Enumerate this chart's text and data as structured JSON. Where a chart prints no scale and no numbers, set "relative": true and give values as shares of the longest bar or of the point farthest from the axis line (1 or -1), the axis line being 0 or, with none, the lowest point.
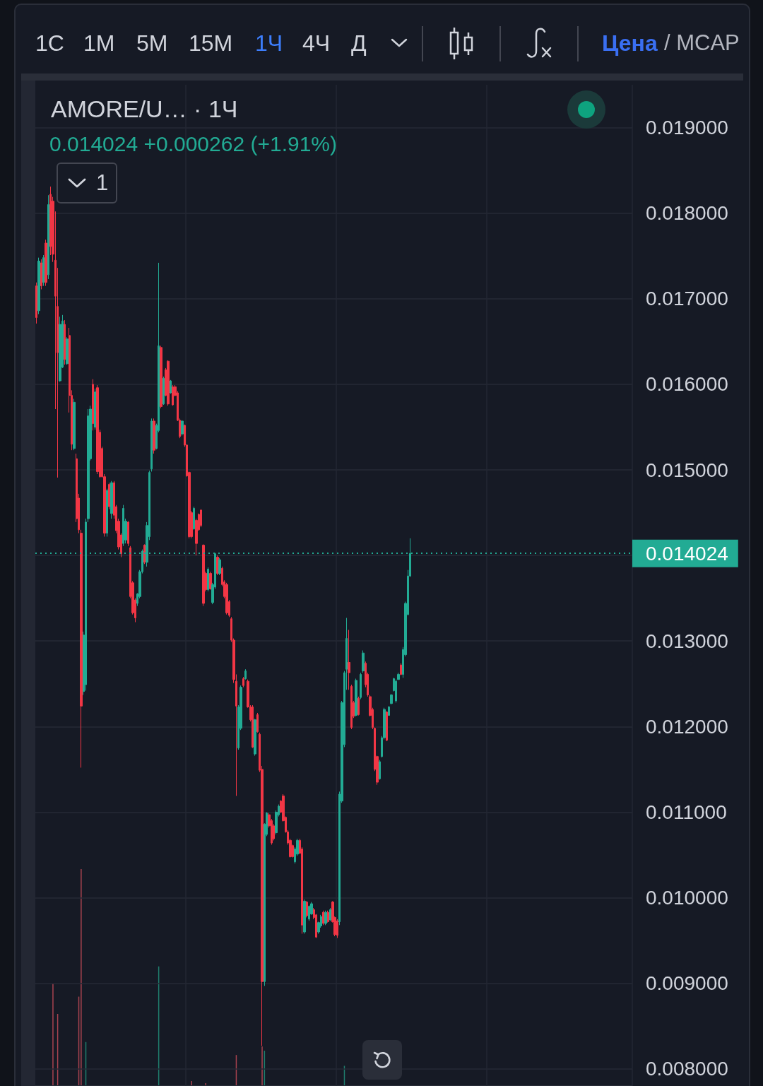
{
  "chart_data": [
    {
      "type": "candlestick",
      "title": "AMORE/U… · 1Ч",
      "subtitle": "0.014024 +0.000262 (+1.91%)",
      "annotations": [
        "1С",
        "1М",
        "5М",
        "15М",
        "1Ч",
        "4Ч",
        "Д",
        "Цена",
        "/ MCAP",
        "1"
      ],
      "categories": [
        null,
        null,
        null,
        null,
        null,
        null,
        null,
        null,
        null,
        null,
        null,
        null,
        null,
        null,
        null,
        null,
        null,
        null,
        null,
        null,
        null,
        null,
        null,
        null,
        null,
        null,
        null,
        null,
        null,
        null,
        null,
        null,
        null,
        null,
        null,
        null,
        null,
        null,
        null,
        null,
        null,
        null,
        null,
        null,
        null,
        null,
        null,
        null,
        null,
        null,
        null,
        null,
        null,
        null,
        null,
        null,
        null,
        null,
        null,
        null,
        null,
        null,
        null,
        null,
        null,
        null,
        null,
        null,
        null,
        null,
        null,
        null,
        null,
        null,
        null,
        null,
        null,
        null,
        null,
        null,
        null,
        null,
        null,
        null,
        null,
        null,
        null,
        null,
        null,
        null,
        null,
        null,
        null,
        null,
        null,
        null,
        null,
        null,
        null,
        null,
        null,
        null,
        null,
        null,
        null,
        null,
        null,
        null,
        null,
        null,
        null,
        null,
        null,
        null,
        null,
        null,
        null,
        null,
        null,
        null,
        null,
        null,
        null,
        null,
        null,
        null,
        null,
        null,
        null,
        null,
        null,
        null,
        null,
        null,
        null,
        null,
        null,
        null,
        null,
        null,
        null,
        null,
        null,
        null,
        null,
        null,
        null,
        null,
        null,
        null,
        null,
        null,
        null,
        null,
        null,
        null,
        null,
        null,
        null,
        null,
        null,
        null,
        null,
        null,
        null,
        null,
        null,
        null,
        null,
        null,
        null,
        null,
        null,
        null,
        null,
        null,
        null,
        null,
        null,
        null,
        null,
        null,
        null,
        null,
        null,
        null,
        null,
        null,
        null,
        null,
        null,
        null,
        null,
        null,
        null,
        null,
        null,
        null,
        null,
        null,
        null,
        null,
        null,
        null,
        null,
        null,
        null,
        null,
        null,
        null,
        null,
        null,
        null,
        null,
        null,
        null,
        null,
        null,
        null,
        null,
        null,
        null,
        null,
        null,
        null,
        null,
        null,
        null,
        null,
        null,
        null,
        null,
        null,
        null,
        null,
        null,
        null,
        null,
        null,
        null,
        null,
        null,
        null,
        null,
        null,
        null,
        null,
        null,
        null,
        null,
        null,
        null,
        null,
        null
      ],
      "ohlc": [
        [
          0.01715,
          0.01719,
          0.01671,
          0.01678
        ],
        [
          0.01686,
          0.01748,
          0.01682,
          0.01744
        ],
        [
          0.01742,
          0.01746,
          0.01711,
          0.01715
        ],
        [
          0.01719,
          0.01751,
          0.01715,
          0.01748
        ],
        [
          0.01765,
          0.01769,
          0.01715,
          0.01719
        ],
        [
          0.01728,
          0.01821,
          0.01723,
          0.0181
        ],
        [
          0.01822,
          0.01831,
          0.01751,
          0.01761
        ],
        [
          0.01814,
          0.01819,
          0.01743,
          0.01752
        ],
        [
          0.01745,
          0.01802,
          0.01571,
          0.01703
        ],
        [
          0.01691,
          0.01736,
          0.01491,
          0.01637
        ],
        [
          0.01604,
          0.01679,
          0.01603,
          0.0167
        ],
        [
          0.0162,
          0.01681,
          0.01619,
          0.01674
        ],
        [
          0.0167,
          0.01675,
          0.01623,
          0.01629
        ],
        [
          0.01624,
          0.01655,
          0.01623,
          0.01653
        ],
        [
          0.01657,
          0.01666,
          0.01567,
          0.01587
        ],
        [
          0.01587,
          0.01593,
          0.01523,
          0.0153
        ],
        [
          0.01525,
          0.01583,
          0.01523,
          0.01579
        ],
        [
          0.01513,
          0.01519,
          0.01439,
          0.01443
        ],
        [
          0.01467,
          0.01472,
          0.01426,
          0.0143
        ],
        [
          0.01426,
          0.0143,
          0.01152,
          0.01224
        ],
        [
          0.01241,
          0.01311,
          0.01237,
          0.01307
        ],
        [
          0.01249,
          0.01443,
          0.01242,
          0.01439
        ],
        [
          0.01443,
          0.01571,
          0.01439,
          0.01563
        ],
        [
          0.01513,
          0.01575,
          0.01511,
          0.01571
        ],
        [
          0.016,
          0.01606,
          0.01546,
          0.01554
        ],
        [
          0.0155,
          0.01595,
          0.01547,
          0.01591
        ],
        [
          0.01596,
          0.01599,
          0.01495,
          0.01498
        ],
        [
          0.01544,
          0.01547,
          0.01491,
          0.01492
        ],
        [
          0.01525,
          0.01527,
          0.01491,
          0.01492
        ],
        [
          0.01492,
          0.01495,
          0.01422,
          0.01426
        ],
        [
          0.01426,
          0.01478,
          0.01422,
          0.01476
        ],
        [
          0.01483,
          0.01485,
          0.01454,
          0.01457
        ],
        [
          0.01449,
          0.01487,
          0.01443,
          0.01485
        ],
        [
          0.01485,
          0.01487,
          0.01443,
          0.01447
        ],
        [
          0.01457,
          0.01459,
          0.01426,
          0.01429
        ],
        [
          0.0144,
          0.01443,
          0.01407,
          0.0141
        ],
        [
          0.01424,
          0.01426,
          0.01398,
          0.01402
        ],
        [
          0.01414,
          0.01459,
          0.01411,
          0.01455
        ],
        [
          0.01418,
          0.01443,
          0.01414,
          0.0144
        ],
        [
          0.01439,
          0.0144,
          0.01411,
          0.01414
        ],
        [
          0.01409,
          0.01411,
          0.0135,
          0.01352
        ],
        [
          0.01368,
          0.0137,
          0.01331,
          0.01333
        ],
        [
          0.01348,
          0.0135,
          0.01322,
          0.01327
        ],
        [
          0.01344,
          0.01356,
          0.01341,
          0.01355
        ],
        [
          0.01352,
          0.01383,
          0.0135,
          0.01381
        ],
        [
          0.01381,
          0.01407,
          0.01379,
          0.01405
        ],
        [
          0.01412,
          0.01413,
          0.0139,
          0.01392
        ],
        [
          0.01392,
          0.01439,
          0.01387,
          0.01435
        ],
        [
          0.01422,
          0.01499,
          0.01418,
          0.01497
        ],
        [
          0.01501,
          0.0156,
          0.01498,
          0.01557
        ],
        [
          0.01557,
          0.0156,
          0.01519,
          0.01523
        ],
        [
          0.01525,
          0.01554,
          0.01524,
          0.01552
        ],
        [
          0.01546,
          0.01742,
          0.01544,
          0.01645
        ],
        [
          0.01643,
          0.01645,
          0.01572,
          0.01574
        ],
        [
          0.01577,
          0.01609,
          0.01576,
          0.01607
        ],
        [
          0.01617,
          0.01619,
          0.01586,
          0.01587
        ],
        [
          0.01627,
          0.01628,
          0.01575,
          0.01577
        ],
        [
          0.0159,
          0.01605,
          0.01589,
          0.01604
        ],
        [
          0.01597,
          0.01599,
          0.01575,
          0.01576
        ],
        [
          0.01597,
          0.01599,
          0.01586,
          0.01587
        ],
        [
          0.0159,
          0.01592,
          0.01557,
          0.01558
        ],
        [
          0.01558,
          0.0156,
          0.01537,
          0.01539
        ],
        [
          0.01542,
          0.01558,
          0.0154,
          0.01557
        ],
        [
          0.01552,
          0.01553,
          0.01527,
          0.01529
        ],
        [
          0.01529,
          0.0153,
          0.01492,
          0.01493
        ],
        [
          0.01497,
          0.01498,
          0.0142,
          0.01422
        ],
        [
          0.0145,
          0.01452,
          0.0142,
          0.01422
        ],
        [
          0.01431,
          0.01457,
          0.0143,
          0.01455
        ],
        [
          0.01441,
          0.01443,
          0.014,
          0.01414
        ],
        [
          0.01448,
          0.01449,
          0.01429,
          0.0143
        ],
        [
          0.01453,
          0.01454,
          0.01433,
          0.01435
        ],
        [
          0.01412,
          0.01413,
          0.01341,
          0.01344
        ],
        [
          0.01379,
          0.01381,
          0.01358,
          0.0136
        ],
        [
          0.0136,
          0.01386,
          0.01358,
          0.01384
        ],
        [
          0.01379,
          0.01381,
          0.0136,
          0.01361
        ],
        [
          0.01345,
          0.01368,
          0.01343,
          0.01366
        ],
        [
          0.01363,
          0.01403,
          0.01361,
          0.01402
        ],
        [
          0.01398,
          0.014,
          0.01377,
          0.01379
        ],
        [
          0.01379,
          0.01397,
          0.01377,
          0.01395
        ],
        [
          0.01385,
          0.01387,
          0.01364,
          0.01366
        ],
        [
          0.01369,
          0.01371,
          0.0135,
          0.01352
        ],
        [
          0.01366,
          0.01368,
          0.01331,
          0.01333
        ],
        [
          0.01346,
          0.01348,
          0.01328,
          0.0133
        ],
        [
          0.01326,
          0.01328,
          0.01299,
          0.01301
        ],
        [
          0.01301,
          0.01303,
          0.01251,
          0.01255
        ],
        [
          0.01253,
          0.01261,
          0.01119,
          0.01224
        ],
        [
          0.01175,
          0.01225,
          0.01173,
          0.01223
        ],
        [
          0.01198,
          0.01248,
          0.01196,
          0.01246
        ],
        [
          0.01256,
          0.01258,
          0.01246,
          0.01248
        ],
        [
          0.01256,
          0.01267,
          0.01255,
          0.01265
        ],
        [
          0.01253,
          0.01255,
          0.01222,
          0.01223
        ],
        [
          0.01223,
          0.01225,
          0.01206,
          0.01208
        ],
        [
          0.01223,
          0.01225,
          0.01175,
          0.01176
        ],
        [
          0.01168,
          0.01209,
          0.01166,
          0.01208
        ],
        [
          0.01214,
          0.01216,
          0.01193,
          0.01194
        ],
        [
          0.01191,
          0.01193,
          0.01147,
          0.01149
        ],
        [
          0.0115,
          0.01154,
          0.00827,
          0.00902
        ],
        [
          0.00902,
          0.01087,
          0.00897,
          0.01086
        ],
        [
          0.01074,
          0.011,
          0.01072,
          0.01099
        ],
        [
          0.01097,
          0.01099,
          0.01082,
          0.01084
        ],
        [
          0.0109,
          0.01092,
          0.01062,
          0.01064
        ],
        [
          0.01084,
          0.01086,
          0.01067,
          0.01069
        ],
        [
          0.01076,
          0.01102,
          0.01074,
          0.011
        ],
        [
          0.01097,
          0.01109,
          0.01095,
          0.01107
        ],
        [
          0.01113,
          0.01114,
          0.01099,
          0.011
        ],
        [
          0.01119,
          0.01121,
          0.01089,
          0.0109
        ],
        [
          0.01094,
          0.01095,
          0.01076,
          0.01077
        ],
        [
          0.01077,
          0.01079,
          0.01062,
          0.01064
        ],
        [
          0.01067,
          0.01069,
          0.01047,
          0.01048
        ],
        [
          0.01061,
          0.01062,
          0.01047,
          0.01048
        ],
        [
          0.01042,
          0.01059,
          0.0104,
          0.01057
        ],
        [
          0.01051,
          0.01069,
          0.01049,
          0.01067
        ],
        [
          0.01067,
          0.01069,
          0.01051,
          0.01052
        ],
        [
          0.01057,
          0.01059,
          0.00958,
          0.00968
        ],
        [
          0.0096,
          0.00998,
          0.00958,
          0.00996
        ],
        [
          0.00995,
          0.00996,
          0.00977,
          0.00979
        ],
        [
          0.00975,
          0.00991,
          0.00973,
          0.0099
        ],
        [
          0.00981,
          0.00995,
          0.0098,
          0.00993
        ],
        [
          0.00986,
          0.00988,
          0.00975,
          0.00977
        ],
        [
          0.0098,
          0.00981,
          0.00953,
          0.00954
        ],
        [
          0.0096,
          0.00972,
          0.00958,
          0.00971
        ],
        [
          0.00967,
          0.0098,
          0.00965,
          0.00978
        ],
        [
          0.00983,
          0.00985,
          0.00968,
          0.0097
        ],
        [
          0.0097,
          0.00985,
          0.00968,
          0.00983
        ],
        [
          0.00983,
          0.00985,
          0.00971,
          0.00972
        ],
        [
          0.00974,
          0.00988,
          0.00973,
          0.00986
        ],
        [
          0.00995,
          0.00996,
          0.00971,
          0.00972
        ],
        [
          0.00977,
          0.00978,
          0.00955,
          0.00957
        ],
        [
          0.00973,
          0.00975,
          0.00953,
          0.00956
        ],
        [
          0.00972,
          0.01124,
          0.00968,
          0.01121
        ],
        [
          0.01113,
          0.0123,
          0.01111,
          0.01228
        ],
        [
          0.01179,
          0.01265,
          0.01176,
          0.01263
        ],
        [
          0.01267,
          0.01327,
          0.01243,
          0.01303
        ],
        [
          0.01275,
          0.01313,
          0.01243,
          0.01263
        ],
        [
          0.01247,
          0.01249,
          0.01197,
          0.01199
        ],
        [
          0.01228,
          0.0123,
          0.0121,
          0.01212
        ],
        [
          0.01213,
          0.01256,
          0.01212,
          0.01254
        ],
        [
          0.01233,
          0.01235,
          0.01213,
          0.01214
        ],
        [
          0.01234,
          0.01263,
          0.01232,
          0.01261
        ],
        [
          0.01265,
          0.01289,
          0.01263,
          0.01286
        ],
        [
          0.01274,
          0.01276,
          0.01246,
          0.01249
        ],
        [
          0.01261,
          0.01263,
          0.01235,
          0.01237
        ],
        [
          0.01235,
          0.01237,
          0.01212,
          0.01213
        ],
        [
          0.0122,
          0.01222,
          0.01197,
          0.01199
        ],
        [
          0.01198,
          0.01199,
          0.01148,
          0.0115
        ],
        [
          0.01165,
          0.01166,
          0.01132,
          0.01135
        ],
        [
          0.01139,
          0.01161,
          0.01138,
          0.01159
        ],
        [
          0.01165,
          0.01189,
          0.01164,
          0.01187
        ],
        [
          0.01187,
          0.01222,
          0.01185,
          0.0122
        ],
        [
          0.01217,
          0.01218,
          0.01183,
          0.01184
        ],
        [
          0.01213,
          0.01224,
          0.01213,
          0.01223
        ],
        [
          0.01227,
          0.01238,
          0.01226,
          0.01237
        ],
        [
          0.01242,
          0.01257,
          0.01241,
          0.01256
        ],
        [
          0.0123,
          0.01255,
          0.01228,
          0.01253
        ],
        [
          0.01255,
          0.01263,
          0.01255,
          0.01261
        ],
        [
          0.01272,
          0.01274,
          0.0126,
          0.01261
        ],
        [
          0.01261,
          0.01293,
          0.01257,
          0.0129
        ],
        [
          0.01284,
          0.01346,
          0.01282,
          0.01344
        ],
        [
          0.01331,
          0.01383,
          0.0133,
          0.01376
        ],
        [
          0.01376,
          0.0142,
          0.01375,
          0.014024
        ],
        null,
        null,
        null,
        null,
        null,
        null,
        null,
        null,
        null,
        null,
        null,
        null,
        null,
        null,
        null,
        null,
        null,
        null,
        null,
        null,
        null,
        null,
        null,
        null,
        null,
        null,
        null,
        null,
        null,
        null,
        null,
        null,
        null,
        null,
        null,
        null,
        null,
        null,
        null,
        null,
        null,
        null,
        null,
        null,
        null,
        null,
        null,
        null,
        null,
        null,
        null,
        null,
        null,
        null,
        null,
        null,
        null,
        null,
        null,
        null,
        null,
        null,
        null,
        null,
        null,
        null,
        null,
        null,
        null,
        null,
        null,
        null,
        null,
        null,
        null,
        null,
        null,
        null,
        null,
        null,
        null,
        null,
        null,
        null,
        null,
        null,
        null,
        null,
        null,
        null,
        null,
        null,
        null,
        null
      ],
      "colors": [
        "#f23645",
        "#22ab94",
        "#f23645",
        "#22ab94",
        "#f23645",
        "#22ab94",
        "#f23645",
        "#f23645",
        "#f23645",
        "#f23645",
        "#22ab94",
        "#22ab94",
        "#f23645",
        "#22ab94",
        "#f23645",
        "#f23645",
        "#22ab94",
        "#f23645",
        "#f23645",
        "#f23645",
        "#22ab94",
        "#22ab94",
        "#22ab94",
        "#22ab94",
        "#f23645",
        "#22ab94",
        "#f23645",
        "#f23645",
        "#f23645",
        "#f23645",
        "#22ab94",
        "#f23645",
        "#22ab94",
        "#f23645",
        "#f23645",
        "#f23645",
        "#f23645",
        "#22ab94",
        "#22ab94",
        "#f23645",
        "#f23645",
        "#f23645",
        "#f23645",
        "#22ab94",
        "#22ab94",
        "#22ab94",
        "#f23645",
        "#22ab94",
        "#22ab94",
        "#22ab94",
        "#f23645",
        "#22ab94",
        "#22ab94",
        "#f23645",
        "#22ab94",
        "#f23645",
        "#f23645",
        "#22ab94",
        "#f23645",
        "#f23645",
        "#f23645",
        "#f23645",
        "#22ab94",
        "#f23645",
        "#f23645",
        "#f23645",
        "#f23645",
        "#22ab94",
        "#f23645",
        "#f23645",
        "#f23645",
        "#f23645",
        "#f23645",
        "#22ab94",
        "#f23645",
        "#22ab94",
        "#22ab94",
        "#f23645",
        "#22ab94",
        "#f23645",
        "#f23645",
        "#f23645",
        "#f23645",
        "#f23645",
        "#f23645",
        "#f23645",
        "#22ab94",
        "#22ab94",
        "#f23645",
        "#22ab94",
        "#f23645",
        "#f23645",
        "#f23645",
        "#22ab94",
        "#f23645",
        "#f23645",
        "#f23645",
        "#22ab94",
        "#22ab94",
        "#f23645",
        "#f23645",
        "#f23645",
        "#22ab94",
        "#22ab94",
        "#f23645",
        "#f23645",
        "#f23645",
        "#f23645",
        "#f23645",
        "#f23645",
        "#22ab94",
        "#22ab94",
        "#f23645",
        "#f23645",
        "#22ab94",
        "#f23645",
        "#22ab94",
        "#22ab94",
        "#f23645",
        "#f23645",
        "#22ab94",
        "#22ab94",
        "#f23645",
        "#22ab94",
        "#f23645",
        "#22ab94",
        "#f23645",
        "#f23645",
        "#f23645",
        "#22ab94",
        "#22ab94",
        "#22ab94",
        "#22ab94",
        "#f23645",
        "#f23645",
        "#f23645",
        "#22ab94",
        "#f23645",
        "#22ab94",
        "#22ab94",
        "#f23645",
        "#f23645",
        "#f23645",
        "#f23645",
        "#f23645",
        "#f23645",
        "#22ab94",
        "#22ab94",
        "#22ab94",
        "#f23645",
        "#22ab94",
        "#22ab94",
        "#22ab94",
        "#22ab94",
        "#22ab94",
        "#f23645",
        "#22ab94",
        "#22ab94",
        "#22ab94",
        "#22ab94",
        null,
        null,
        null,
        null,
        null,
        null,
        null,
        null,
        null,
        null,
        null,
        null,
        null,
        null,
        null,
        null,
        null,
        null,
        null,
        null,
        null,
        null,
        null,
        null,
        null,
        null,
        null,
        null,
        null,
        null,
        null,
        null,
        null,
        null,
        null,
        null,
        null,
        null,
        null,
        null,
        null,
        null,
        null,
        null,
        null,
        null,
        null,
        null,
        null,
        null,
        null,
        null,
        null,
        null,
        null,
        null,
        null,
        null,
        null,
        null,
        null,
        null,
        null,
        null,
        null,
        null,
        null,
        null,
        null,
        null,
        null,
        null,
        null,
        null,
        null,
        null,
        null,
        null,
        null,
        null,
        null,
        null,
        null,
        null,
        null,
        null,
        null,
        null,
        null,
        null,
        null,
        null,
        null,
        null
      ],
      "ylim": [
        0.0078,
        0.0195
      ],
      "yticks": [
        {
          "value": 0.008,
          "label": "0.008000"
        },
        {
          "value": 0.009,
          "label": "0.009000"
        },
        {
          "value": 0.01,
          "label": "0.010000"
        },
        {
          "value": 0.011,
          "label": "0.011000"
        },
        {
          "value": 0.012,
          "label": "0.012000"
        },
        {
          "value": 0.013,
          "label": "0.013000"
        },
        {
          "value": 0.014,
          "label": null
        },
        {
          "value": 0.015,
          "label": "0.015000"
        },
        {
          "value": 0.016,
          "label": "0.016000"
        },
        {
          "value": 0.017,
          "label": "0.017000"
        },
        {
          "value": 0.018,
          "label": "0.018000"
        },
        {
          "value": 0.019,
          "label": "0.019000"
        }
      ],
      "grid": true,
      "tick_labels": "y",
      "ref_lines": [
        {
          "axis": "y",
          "value": 0.014024,
          "label": "0.014024",
          "color": "#22ab94",
          "line_style": "dotted"
        }
      ]
    },
    {
      "type": "bar",
      "relative": true,
      "tick_labels": false,
      "categories": [
        null,
        null,
        null,
        null,
        null,
        null,
        null,
        null,
        null,
        null,
        null,
        null,
        null,
        null,
        null,
        null,
        null,
        null,
        null,
        null,
        null,
        null,
        null,
        null,
        null,
        null,
        null,
        null,
        null,
        null,
        null,
        null,
        null,
        null,
        null,
        null,
        null,
        null,
        null,
        null,
        null,
        null,
        null,
        null,
        null,
        null,
        null,
        null,
        null,
        null,
        null,
        null,
        null,
        null,
        null,
        null,
        null,
        null,
        null,
        null,
        null,
        null,
        null,
        null,
        null,
        null,
        null,
        null,
        null,
        null,
        null,
        null,
        null,
        null,
        null,
        null,
        null,
        null,
        null,
        null,
        null,
        null,
        null,
        null,
        null,
        null,
        null,
        null,
        null,
        null,
        null,
        null,
        null,
        null,
        null,
        null,
        null,
        null,
        null,
        null,
        null,
        null,
        null,
        null,
        null,
        null,
        null,
        null,
        null,
        null,
        null,
        null,
        null,
        null,
        null,
        null,
        null,
        null,
        null,
        null,
        null,
        null,
        null,
        null,
        null,
        null,
        null,
        null,
        null,
        null,
        null,
        null,
        null,
        null,
        null,
        null,
        null,
        null,
        null,
        null,
        null,
        null,
        null,
        null,
        null,
        null,
        null,
        null,
        null,
        null,
        null,
        null,
        null,
        null,
        null,
        null,
        null,
        null,
        null,
        null,
        null,
        null,
        null,
        null,
        null,
        null,
        null,
        null,
        null,
        null,
        null,
        null,
        null,
        null,
        null,
        null,
        null,
        null,
        null,
        null,
        null,
        null,
        null,
        null,
        null,
        null,
        null,
        null,
        null,
        null,
        null,
        null,
        null,
        null,
        null,
        null,
        null,
        null,
        null,
        null,
        null,
        null,
        null,
        null,
        null,
        null,
        null,
        null,
        null,
        null,
        null,
        null,
        null,
        null,
        null,
        null,
        null,
        null,
        null,
        null,
        null,
        null,
        null,
        null,
        null,
        null,
        null,
        null,
        null,
        null,
        null,
        null,
        null,
        null,
        null,
        null,
        null,
        null,
        null,
        null,
        null,
        null,
        null,
        null,
        null,
        null,
        null,
        null,
        null,
        null,
        null,
        null,
        null,
        null
      ],
      "values": [
        null,
        null,
        null,
        null,
        null,
        null,
        null,
        0.47,
        null,
        0.33,
        null,
        null,
        null,
        null,
        null,
        null,
        null,
        null,
        0.41,
        1,
        null,
        0.2,
        null,
        null,
        null,
        null,
        null,
        null,
        null,
        null,
        null,
        null,
        null,
        null,
        null,
        null,
        null,
        null,
        null,
        null,
        null,
        null,
        null,
        null,
        null,
        null,
        null,
        null,
        null,
        null,
        null,
        null,
        0.55,
        null,
        null,
        null,
        null,
        null,
        null,
        null,
        null,
        null,
        null,
        null,
        null,
        null,
        0.02,
        null,
        null,
        null,
        null,
        null,
        0.01,
        null,
        null,
        null,
        null,
        null,
        null,
        null,
        null,
        null,
        null,
        null,
        null,
        0.14,
        null,
        null,
        null,
        null,
        null,
        null,
        null,
        null,
        null,
        null,
        0.18,
        0.16,
        null,
        null,
        null,
        null,
        null,
        null,
        null,
        null,
        null,
        null,
        null,
        null,
        null,
        null,
        null,
        null,
        null,
        null,
        null,
        null,
        null,
        null,
        null,
        null,
        null,
        null,
        null,
        null,
        null,
        null,
        null,
        null,
        null,
        0.09,
        null,
        null,
        null,
        null,
        null,
        null,
        null,
        null,
        null,
        null,
        null,
        null,
        null,
        null,
        null,
        null,
        null,
        null,
        null,
        null,
        null,
        null,
        null,
        null,
        null,
        null,
        null,
        null,
        null,
        null,
        null,
        null,
        null,
        null,
        null,
        null,
        null,
        null,
        null,
        null,
        null,
        null,
        null,
        null,
        null,
        null,
        null,
        null,
        null,
        null,
        null,
        null,
        null,
        null,
        null,
        null,
        null,
        null,
        null,
        null,
        null,
        null,
        null,
        null,
        null,
        null,
        null,
        null,
        null,
        null,
        null,
        null,
        null,
        null,
        null,
        null,
        null,
        null,
        null,
        null,
        null,
        null,
        null,
        null,
        null,
        null,
        null,
        null,
        null,
        null,
        null,
        null,
        null,
        null,
        null,
        null,
        null,
        null,
        null,
        null,
        null,
        null,
        null,
        null,
        null,
        null,
        null,
        null,
        null,
        null,
        null,
        null,
        null,
        null,
        null,
        null,
        null,
        null,
        null,
        null,
        null,
        null
      ],
      "colors": [
        null,
        null,
        null,
        null,
        null,
        null,
        null,
        "#a8434f",
        null,
        "#a8434f",
        null,
        null,
        null,
        null,
        null,
        null,
        null,
        null,
        "#a8434f",
        "#a8434f",
        null,
        "#1f7d6d",
        null,
        null,
        null,
        null,
        null,
        null,
        null,
        null,
        null,
        null,
        null,
        null,
        null,
        null,
        null,
        null,
        null,
        null,
        null,
        null,
        null,
        null,
        null,
        null,
        null,
        null,
        null,
        null,
        null,
        null,
        "#1f7d6d",
        null,
        null,
        null,
        null,
        null,
        null,
        null,
        null,
        null,
        null,
        null,
        null,
        null,
        "#a8434f",
        null,
        null,
        null,
        null,
        null,
        "#a8434f",
        null,
        null,
        null,
        null,
        null,
        null,
        null,
        null,
        null,
        null,
        null,
        null,
        "#a8434f",
        null,
        null,
        null,
        null,
        null,
        null,
        null,
        null,
        null,
        null,
        "#a8434f",
        "#1f7d6d",
        null,
        null,
        null,
        null,
        null,
        null,
        null,
        null,
        null,
        null,
        null,
        null,
        null,
        null,
        null,
        null,
        null,
        null,
        null,
        null,
        null,
        null,
        null,
        null,
        null,
        null,
        null,
        null,
        null,
        null,
        null,
        null,
        null,
        "#1f7d6d",
        null,
        null,
        null,
        null,
        null,
        null,
        null,
        null,
        null,
        null,
        null,
        null,
        null,
        null,
        null,
        null,
        null,
        null,
        null,
        null,
        null,
        null,
        null,
        null,
        null,
        null,
        null,
        null,
        null,
        null,
        null,
        null,
        null,
        null,
        null,
        null,
        null,
        null,
        null,
        null,
        null,
        null,
        null,
        null,
        null,
        null,
        null,
        null,
        null,
        null,
        null,
        null,
        null,
        null,
        null,
        null,
        null,
        null,
        null,
        null,
        null,
        null,
        null,
        null,
        null,
        null,
        null,
        null,
        null,
        null,
        null,
        null,
        null,
        null,
        null,
        null,
        null,
        null,
        null,
        null,
        null,
        null,
        null,
        null,
        null,
        null,
        null,
        null,
        null,
        null,
        null,
        null,
        null,
        null,
        null,
        null,
        null,
        null,
        null,
        null,
        null,
        null,
        null,
        null,
        null,
        null,
        null,
        null,
        null,
        null,
        null,
        null,
        null,
        null,
        null,
        null,
        null,
        null,
        null,
        null,
        null,
        null
      ]
    }
  ]
}
